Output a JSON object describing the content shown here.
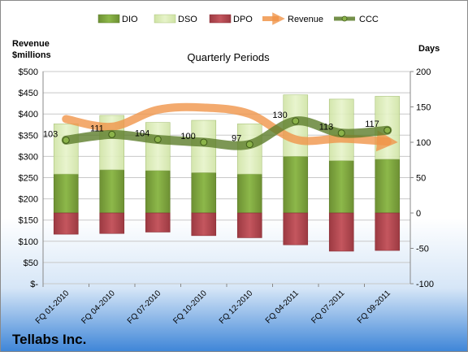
{
  "chart_data": {
    "type": "bar",
    "title": "Quarterly Periods",
    "company": "Tellabs Inc.",
    "left_axis_label": [
      "Revenue",
      "$millions"
    ],
    "right_axis_label": "Days",
    "left_ylim": [
      0,
      500
    ],
    "left_ticks": [
      "$-",
      "$50",
      "$100",
      "$150",
      "$200",
      "$250",
      "$300",
      "$350",
      "$400",
      "$450",
      "$500"
    ],
    "right_ylim": [
      -100,
      200
    ],
    "right_ticks": [
      "-100",
      "-50",
      "0",
      "50",
      "100",
      "150",
      "200"
    ],
    "grid": true,
    "legend_position": "top",
    "categories": [
      "FQ 01-2010",
      "FQ 04-2010",
      "FQ 07-2010",
      "FQ 10-2010",
      "FQ 12-2010",
      "FQ 04-2011",
      "FQ 07-2011",
      "FQ 09-2011"
    ],
    "series": [
      {
        "name": "DIO",
        "type": "bar",
        "axis": "right",
        "color": "#7fa53e",
        "values": [
          55,
          61,
          60,
          57,
          55,
          80,
          74,
          76
        ]
      },
      {
        "name": "DSO",
        "type": "bar",
        "axis": "right",
        "color": "#d9ecb4",
        "values": [
          71,
          77,
          68,
          74,
          71,
          87,
          87,
          89
        ]
      },
      {
        "name": "DPO",
        "type": "bar",
        "axis": "right",
        "color": "#b5474f",
        "values": [
          -30,
          -29,
          -27,
          -32,
          -35,
          -45,
          -54,
          -53
        ]
      },
      {
        "name": "Revenue",
        "type": "line",
        "axis": "left",
        "color": "#f0954a",
        "values": [
          388,
          370,
          410,
          415,
          400,
          340,
          342,
          335
        ]
      },
      {
        "name": "CCC",
        "type": "line",
        "axis": "right",
        "color": "#5c7d2a",
        "values": [
          103,
          111,
          104,
          100,
          97,
          130,
          113,
          117
        ]
      }
    ],
    "ccc_labels": [
      "103",
      "111",
      "104",
      "100",
      "97",
      "130",
      "113",
      "117"
    ]
  }
}
